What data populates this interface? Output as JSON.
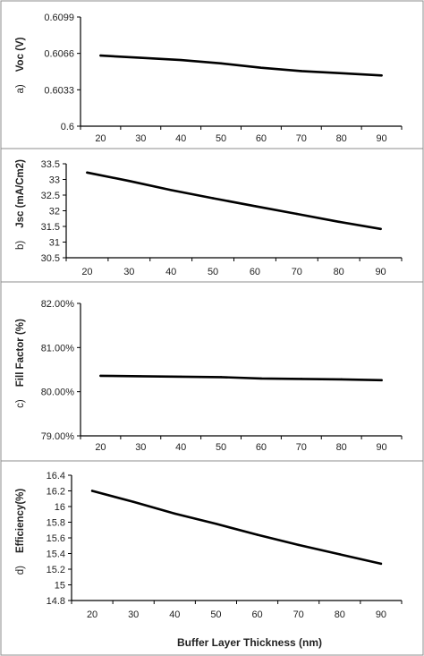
{
  "figure": {
    "xlabel": "Buffer Layer Thickness (nm)"
  },
  "chart_data": [
    {
      "type": "line",
      "panel": "a)",
      "ylabel": "Voc (V)",
      "x": [
        20,
        30,
        40,
        50,
        60,
        70,
        80,
        90
      ],
      "x_ticks": [
        "20",
        "30",
        "40",
        "50",
        "60",
        "70",
        "80",
        "90"
      ],
      "y": [
        0.6064,
        0.6062,
        0.606,
        0.6057,
        0.6053,
        0.605,
        0.6048,
        0.6046
      ],
      "ylim": [
        0.6,
        0.6099
      ],
      "y_ticks": [
        0.6,
        0.6033,
        0.6066,
        0.6099
      ],
      "y_tick_labels": [
        "0.6",
        "0.6033",
        "0.6066",
        "0.6099"
      ],
      "grid": false,
      "series_color": "#000000"
    },
    {
      "type": "line",
      "panel": "b)",
      "ylabel": "Jsc (mA/Cm2)",
      "x": [
        20,
        30,
        40,
        50,
        60,
        70,
        80,
        90
      ],
      "x_ticks": [
        "20",
        "30",
        "40",
        "50",
        "60",
        "70",
        "80",
        "90"
      ],
      "y": [
        33.22,
        32.95,
        32.66,
        32.4,
        32.15,
        31.9,
        31.65,
        31.42
      ],
      "ylim": [
        30.5,
        33.5
      ],
      "y_ticks": [
        30.5,
        31,
        31.5,
        32,
        32.5,
        33,
        33.5
      ],
      "y_tick_labels": [
        "30.5",
        "31",
        "31.5",
        "32",
        "32.5",
        "33",
        "33.5"
      ],
      "grid": false,
      "series_color": "#000000"
    },
    {
      "type": "line",
      "panel": "c)",
      "ylabel": "Fill Factor (%)",
      "x": [
        20,
        30,
        40,
        50,
        60,
        70,
        80,
        90
      ],
      "x_ticks": [
        "20",
        "30",
        "40",
        "50",
        "60",
        "70",
        "80",
        "90"
      ],
      "y": [
        80.36,
        80.35,
        80.34,
        80.33,
        80.3,
        80.29,
        80.28,
        80.26
      ],
      "ylim": [
        79.0,
        82.0
      ],
      "y_ticks": [
        79.0,
        80.0,
        81.0,
        82.0
      ],
      "y_tick_labels": [
        "79.00%",
        "80.00%",
        "81.00%",
        "82.00%"
      ],
      "grid": false,
      "series_color": "#000000"
    },
    {
      "type": "line",
      "panel": "d)",
      "ylabel": "Efficiency(%)",
      "x": [
        20,
        30,
        40,
        50,
        60,
        70,
        80,
        90
      ],
      "x_ticks": [
        "20",
        "30",
        "40",
        "50",
        "60",
        "70",
        "80",
        "90"
      ],
      "y": [
        16.2,
        16.06,
        15.91,
        15.78,
        15.64,
        15.51,
        15.39,
        15.27
      ],
      "ylim": [
        14.8,
        16.4
      ],
      "y_ticks": [
        14.8,
        15,
        15.2,
        15.4,
        15.6,
        15.8,
        16,
        16.2,
        16.4
      ],
      "y_tick_labels": [
        "14.8",
        "15",
        "15.2",
        "15.4",
        "15.6",
        "15.8",
        "16",
        "16.2",
        "16.4"
      ],
      "grid": false,
      "series_color": "#000000"
    }
  ]
}
